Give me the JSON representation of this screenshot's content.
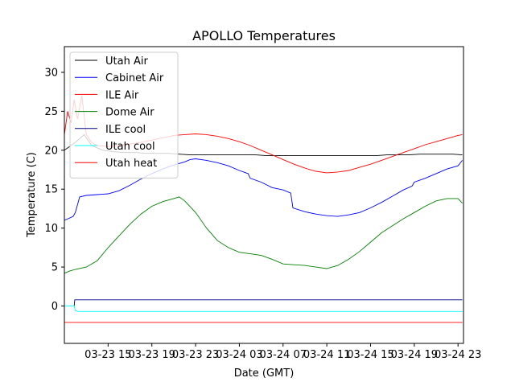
{
  "chart_data": {
    "type": "line",
    "title": "APOLLO Temperatures",
    "xlabel": "Date (GMT)",
    "ylabel": "Temperature (C)",
    "xlim": [
      11.0,
      47.5
    ],
    "ylim": [
      -4.8,
      33.3
    ],
    "yticks": [
      0,
      5,
      10,
      15,
      20,
      25,
      30
    ],
    "xticks": [
      {
        "value": 15,
        "label": "03-23 15"
      },
      {
        "value": 19,
        "label": "03-23 19"
      },
      {
        "value": 23,
        "label": "03-23 23"
      },
      {
        "value": 27,
        "label": "03-24 03"
      },
      {
        "value": 31,
        "label": "03-24 07"
      },
      {
        "value": 35,
        "label": "03-24 11"
      },
      {
        "value": 39,
        "label": "03-24 15"
      },
      {
        "value": 43,
        "label": "03-24 19"
      },
      {
        "value": 47,
        "label": "03-24 23"
      }
    ],
    "grid": false,
    "legend_position": "upper-left",
    "series": [
      {
        "name": "Utah Air",
        "color": "#000000",
        "x": [
          11.0,
          11.5,
          12.0,
          12.8,
          13.5,
          14.5,
          15.5,
          16.5,
          17.5,
          18.5,
          19.5,
          20.5,
          21.5,
          22.5,
          23.5,
          24.5,
          25.5,
          26.5,
          27.5,
          28.5,
          29.5,
          30.5,
          31.5,
          32.5,
          33.5,
          34.5,
          35.5,
          36.5,
          37.5,
          38.5,
          39.5,
          40.5,
          41.5,
          42.5,
          43.5,
          44.5,
          45.5,
          46.5,
          47.4
        ],
        "values": [
          20.0,
          20.5,
          21.0,
          22.0,
          20.6,
          20.0,
          19.8,
          19.7,
          19.7,
          19.6,
          19.6,
          19.6,
          19.5,
          19.4,
          19.4,
          19.4,
          19.4,
          19.4,
          19.4,
          19.4,
          19.3,
          19.3,
          19.3,
          19.3,
          19.3,
          19.3,
          19.3,
          19.3,
          19.3,
          19.3,
          19.3,
          19.4,
          19.4,
          19.4,
          19.5,
          19.5,
          19.5,
          19.5,
          19.4
        ]
      },
      {
        "name": "Cabinet Air",
        "color": "#0000ff",
        "x": [
          11.0,
          11.8,
          12.0,
          12.2,
          12.4,
          13.0,
          14.0,
          15.0,
          16.0,
          17.0,
          18.0,
          19.0,
          20.0,
          21.0,
          21.5,
          22.0,
          22.5,
          23.0,
          24.0,
          25.0,
          26.0,
          27.0,
          27.8,
          28.0,
          29.0,
          30.0,
          31.0,
          31.7,
          31.9,
          33.0,
          34.0,
          35.0,
          36.0,
          37.0,
          38.0,
          39.0,
          40.0,
          41.0,
          42.0,
          42.8,
          43.0,
          44.0,
          45.0,
          46.0,
          47.0,
          47.4
        ],
        "values": [
          11.0,
          11.5,
          12.0,
          13.0,
          14.0,
          14.2,
          14.3,
          14.4,
          14.8,
          15.5,
          16.3,
          17.0,
          17.6,
          18.1,
          18.3,
          18.5,
          18.8,
          18.9,
          18.7,
          18.4,
          18.0,
          17.4,
          17.0,
          16.4,
          15.9,
          15.2,
          14.9,
          14.5,
          12.6,
          12.1,
          11.8,
          11.6,
          11.5,
          11.7,
          12.0,
          12.6,
          13.3,
          14.1,
          14.9,
          15.4,
          15.9,
          16.4,
          17.0,
          17.6,
          18.0,
          18.7
        ]
      },
      {
        "name": "ILE Air",
        "color": "#ff0000",
        "x": [
          11.0,
          11.3,
          11.6,
          11.9,
          12.2,
          12.6,
          13.0,
          13.5,
          14.0,
          15.0,
          16.0,
          17.0,
          18.0,
          19.0,
          20.0,
          21.0,
          22.0,
          23.0,
          24.0,
          25.0,
          26.0,
          27.0,
          28.0,
          29.0,
          30.0,
          31.0,
          32.0,
          33.0,
          34.0,
          35.0,
          36.0,
          37.0,
          38.0,
          39.0,
          40.0,
          41.0,
          42.0,
          43.0,
          44.0,
          45.0,
          46.0,
          47.0,
          47.4
        ],
        "values": [
          22.0,
          25.0,
          23.5,
          26.5,
          24.0,
          27.0,
          22.0,
          21.0,
          20.6,
          20.5,
          20.6,
          20.8,
          21.0,
          21.3,
          21.6,
          21.9,
          22.0,
          22.1,
          22.0,
          21.8,
          21.5,
          21.1,
          20.6,
          20.0,
          19.4,
          18.8,
          18.2,
          17.7,
          17.3,
          17.1,
          17.2,
          17.4,
          17.8,
          18.2,
          18.7,
          19.2,
          19.7,
          20.2,
          20.7,
          21.1,
          21.5,
          21.9,
          22.0
        ]
      },
      {
        "name": "Dome Air",
        "color": "#008000",
        "x": [
          11.0,
          11.5,
          12.0,
          13.0,
          14.0,
          15.0,
          16.0,
          17.0,
          18.0,
          19.0,
          20.0,
          21.0,
          21.5,
          22.0,
          23.0,
          24.0,
          25.0,
          26.0,
          27.0,
          28.0,
          29.0,
          30.0,
          31.0,
          32.0,
          33.0,
          34.0,
          35.0,
          36.0,
          37.0,
          38.0,
          39.0,
          40.0,
          41.0,
          42.0,
          43.0,
          44.0,
          45.0,
          46.0,
          47.0,
          47.4
        ],
        "values": [
          4.2,
          4.5,
          4.7,
          5.0,
          5.8,
          7.5,
          9.0,
          10.5,
          11.8,
          12.8,
          13.4,
          13.8,
          14.0,
          13.5,
          12.0,
          10.0,
          8.4,
          7.5,
          6.9,
          6.7,
          6.5,
          6.0,
          5.4,
          5.3,
          5.2,
          5.0,
          4.8,
          5.2,
          6.0,
          7.0,
          8.2,
          9.4,
          10.3,
          11.2,
          12.0,
          12.8,
          13.5,
          13.8,
          13.8,
          13.2
        ]
      },
      {
        "name": "ILE cool",
        "color": "#00008b",
        "x": [
          11.0,
          11.9,
          11.95,
          47.4
        ],
        "values": [
          0.0,
          0.0,
          0.8,
          0.8
        ]
      },
      {
        "name": "Utah cool",
        "color": "#00ffff",
        "x": [
          11.0,
          11.9,
          12.0,
          12.3,
          12.5,
          47.4
        ],
        "values": [
          0.0,
          0.0,
          -0.6,
          -0.7,
          -0.7,
          -0.7
        ]
      },
      {
        "name": "Utah heat",
        "color": "#ff0000",
        "x": [
          11.0,
          47.4
        ],
        "values": [
          -2.1,
          -2.1
        ]
      }
    ]
  }
}
